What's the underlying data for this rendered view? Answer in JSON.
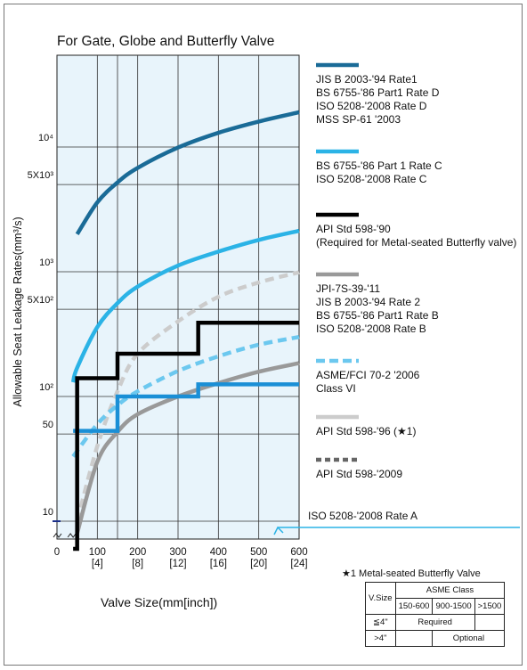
{
  "chart_data": {
    "type": "line",
    "title": "For Gate, Globe and Butterfly Valve",
    "xlabel": "Valve Size(mm[inch])",
    "ylabel": "Allowable Seat Leakage Rates(mm³/s)",
    "x_scale": "linear",
    "y_scale": "log",
    "xlim": [
      0,
      600
    ],
    "x_ticks": [
      {
        "value": 0,
        "label": "0",
        "sub": ""
      },
      {
        "value": 100,
        "label": "100",
        "sub": "[4]"
      },
      {
        "value": 150,
        "label": "",
        "sub": ""
      },
      {
        "value": 200,
        "label": "200",
        "sub": "[8]"
      },
      {
        "value": 300,
        "label": "300",
        "sub": "[12]"
      },
      {
        "value": 400,
        "label": "400",
        "sub": "[16]"
      },
      {
        "value": 500,
        "label": "500",
        "sub": "[20]"
      },
      {
        "value": 600,
        "label": "600",
        "sub": "[24]"
      }
    ],
    "y_ticks": [
      {
        "value": 10,
        "label": "10"
      },
      {
        "value": 50,
        "label": "50"
      },
      {
        "value": 100,
        "label": "10²"
      },
      {
        "value": 500,
        "label": "5X10²"
      },
      {
        "value": 1000,
        "label": "10³"
      },
      {
        "value": 5000,
        "label": "5X10³"
      },
      {
        "value": 10000,
        "label": "10⁴"
      }
    ],
    "grid": true,
    "legend_position": "right",
    "series": [
      {
        "name": "JIS B 2003-'94 Rate1 / BS 6755-'86 Part1 Rate D / ISO 5208-'2008 Rate D / MSS SP-61 '2003",
        "color": "#1a6b97",
        "style": "solid",
        "x": [
          50,
          100,
          150,
          200,
          300,
          400,
          500,
          600
        ],
        "y": [
          2000,
          3600,
          5200,
          6800,
          9900,
          13000,
          16000,
          19000
        ]
      },
      {
        "name": "BS 6755-'86 Part 1 Rate C / ISO 5208-'2008 Rate C",
        "color": "#2bb3e6",
        "style": "solid",
        "x": [
          40,
          50,
          100,
          150,
          200,
          300,
          400,
          500,
          600
        ],
        "y": [
          130,
          170,
          360,
          560,
          760,
          1120,
          1450,
          1800,
          2130
        ]
      },
      {
        "name": "API Std 598-'90 (Required for Metal-seated Butterfly valve)",
        "color": "#000000",
        "style": "step",
        "x": [
          40,
          50,
          50,
          150,
          150,
          350,
          350,
          600
        ],
        "y": [
          6,
          6,
          140,
          140,
          220,
          220,
          390,
          390
        ]
      },
      {
        "name": "JPI-7S-39-'11 / JIS B 2003-'94 Rate 2 / BS 6755-'86 Part1 Rate B / ISO 5208-'2008 Rate B",
        "color": "#999999",
        "style": "solid",
        "x": [
          50,
          100,
          150,
          200,
          300,
          400,
          500,
          600
        ],
        "y": [
          8,
          30,
          52,
          72,
          100,
          128,
          158,
          185
        ]
      },
      {
        "name": "ASME/FCI 70-2 '2006 Class VI",
        "color": "#6cc8ef",
        "style": "dashed",
        "x": [
          40,
          100,
          150,
          200,
          300,
          400,
          500,
          600
        ],
        "y": [
          33,
          60,
          85,
          110,
          160,
          210,
          260,
          300
        ]
      },
      {
        "name": "API Std 598-'96 (★1)",
        "color": "#cccccc",
        "style": "dashed",
        "x": [
          50,
          100,
          150,
          200,
          300,
          400,
          500,
          600
        ],
        "y": [
          10,
          40,
          110,
          220,
          400,
          630,
          820,
          990
        ]
      },
      {
        "name": "API Std 598-'2009",
        "color": "#666666",
        "style": "dashed",
        "x": [],
        "y": []
      },
      {
        "name": "ISO 5208-'2008 Rate A",
        "color": "#2bb3e6",
        "style": "arrow",
        "x": [],
        "y": []
      },
      {
        "name": "",
        "color": "#1a8fd6",
        "style": "step",
        "x": [
          40,
          150,
          150,
          350,
          350,
          600
        ],
        "y": [
          53,
          53,
          100,
          100,
          125,
          125
        ]
      }
    ],
    "legend": [
      {
        "lines": [
          "JIS B 2003-'94 Rate1",
          "BS 6755-'86  Part1 Rate D",
          "ISO 5208-'2008 Rate D",
          "MSS SP-61 '2003"
        ],
        "color": "#1a6b97",
        "style": "solid"
      },
      {
        "lines": [
          "BS 6755-'86 Part 1 Rate C",
          "ISO 5208-'2008 Rate C"
        ],
        "color": "#2bb3e6",
        "style": "solid"
      },
      {
        "lines": [
          "API Std 598-'90",
          "(Required  for Metal-seated Butterfly valve)"
        ],
        "color": "#000000",
        "style": "solid"
      },
      {
        "lines": [
          "JPI-7S-39-'11",
          "JIS B 2003-'94 Rate 2",
          "BS 6755-'86 Part1 Rate B",
          "ISO 5208-'2008 Rate B"
        ],
        "color": "#999999",
        "style": "solid"
      },
      {
        "lines": [
          "ASME/FCI 70-2 '2006",
          "Class VI"
        ],
        "color": "#6cc8ef",
        "style": "dashed"
      },
      {
        "lines": [
          "API Std 598-'96 (★1)"
        ],
        "color": "#cccccc",
        "style": "solid"
      },
      {
        "lines": [
          "API Std 598-'2009"
        ],
        "color": "#666666",
        "style": "dotted"
      },
      {
        "lines": [
          "ISO 5208-'2008 Rate A"
        ],
        "color": "#2bb3e6",
        "style": "arrow"
      }
    ]
  },
  "note": {
    "title": "★1 Metal-seated Butterfly Valve",
    "table": {
      "group_header": "ASME Class",
      "row_header": "V.Size",
      "columns": [
        "150-600",
        "900-1500",
        ">1500"
      ],
      "rows": [
        {
          "size": "≦4\"",
          "text": "Required"
        },
        {
          "size": ">4\"",
          "text": "Optional"
        }
      ]
    }
  },
  "colors": {
    "plot_bg": "#e8f4fb",
    "grid": "#333333"
  }
}
